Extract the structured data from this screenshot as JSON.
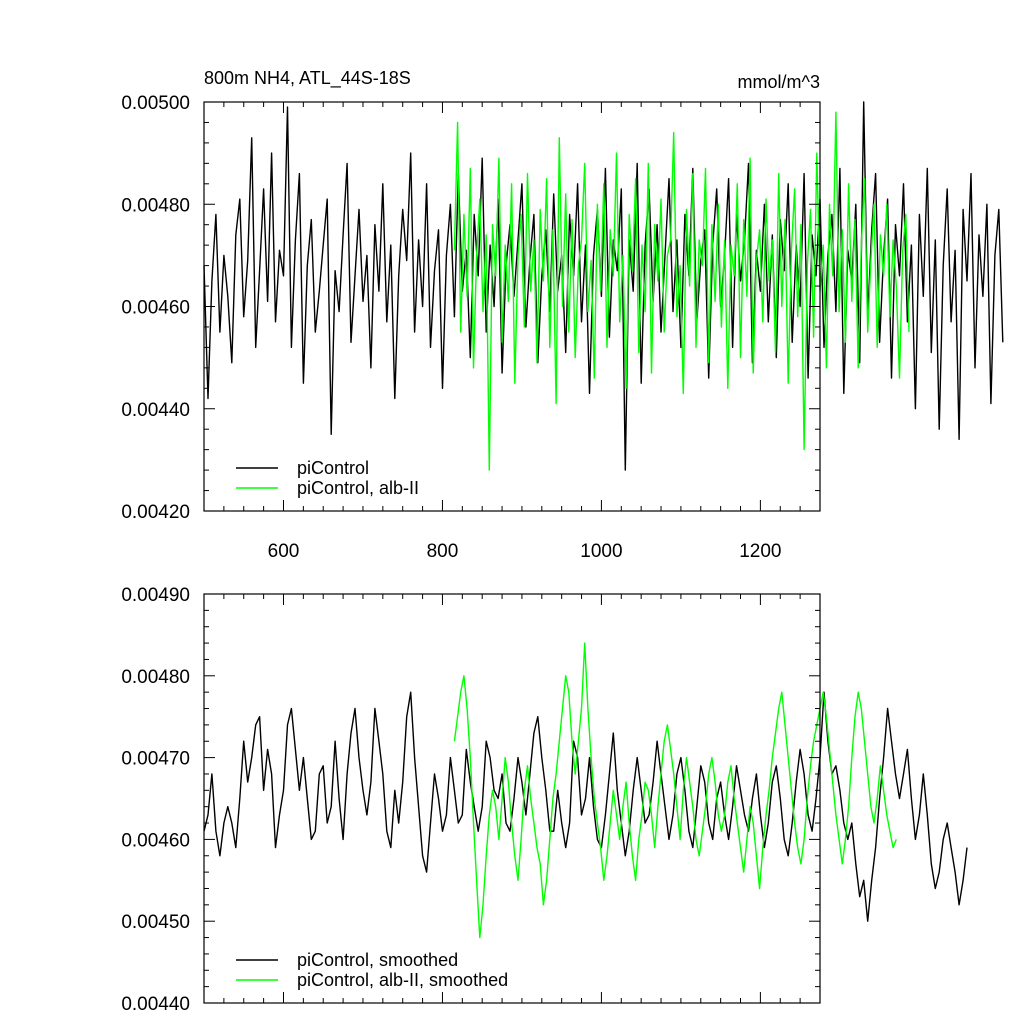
{
  "chart_data": [
    {
      "type": "line",
      "title": "800m NH4, ATL_44S-18S",
      "units": "mmol/m^3",
      "xlim": [
        500,
        1275
      ],
      "ylim": [
        0.0042,
        0.005
      ],
      "x_ticks": [
        "600",
        "800",
        "1000",
        "1200"
      ],
      "y_ticks": [
        "0.00420",
        "0.00440",
        "0.00460",
        "0.00480",
        "0.00500"
      ],
      "legend_position": "bottom-left",
      "series": [
        {
          "name": "piControl",
          "color": "#000000",
          "x_start": 500,
          "x_step": 5,
          "values": [
            0.00468,
            0.00442,
            0.00465,
            0.00478,
            0.00455,
            0.0047,
            0.00462,
            0.00449,
            0.00474,
            0.00481,
            0.00458,
            0.00469,
            0.00493,
            0.00452,
            0.00467,
            0.00483,
            0.00461,
            0.0049,
            0.00457,
            0.00471,
            0.00466,
            0.00499,
            0.00452,
            0.00473,
            0.00486,
            0.00445,
            0.00468,
            0.00477,
            0.00455,
            0.00463,
            0.00472,
            0.00481,
            0.00435,
            0.00467,
            0.00459,
            0.00474,
            0.00488,
            0.00453,
            0.00466,
            0.00479,
            0.00461,
            0.0047,
            0.00448,
            0.00476,
            0.00463,
            0.00484,
            0.00457,
            0.00472,
            0.00442,
            0.00466,
            0.00479,
            0.00469,
            0.0049,
            0.00455,
            0.00473,
            0.0046,
            0.00484,
            0.00452,
            0.00467,
            0.00475,
            0.00444,
            0.0047,
            0.0048,
            0.00458,
            0.00486,
            0.00463,
            0.00471,
            0.0045,
            0.00478,
            0.00466,
            0.00489,
            0.00455,
            0.00472,
            0.0046,
            0.00481,
            0.00447,
            0.00468,
            0.00476,
            0.00462,
            0.00473,
            0.00484,
            0.00456,
            0.00469,
            0.00478,
            0.00449,
            0.00466,
            0.00475,
            0.00459,
            0.00482,
            0.00463,
            0.0047,
            0.00451,
            0.00478,
            0.00466,
            0.00484,
            0.00457,
            0.00472,
            0.00443,
            0.0047,
            0.00479,
            0.00462,
            0.00487,
            0.00454,
            0.00473,
            0.00467,
            0.00483,
            0.00428,
            0.00473,
            0.00463,
            0.00488,
            0.00445,
            0.00472,
            0.00483,
            0.00461,
            0.00476,
            0.00455,
            0.0047,
            0.00485,
            0.00459,
            0.00473,
            0.00452,
            0.00478,
            0.00466,
            0.00487,
            0.00457,
            0.00469,
            0.00475,
            0.00446,
            0.00472,
            0.00483,
            0.0046,
            0.0047,
            0.00485,
            0.00452,
            0.00478,
            0.00465,
            0.00473,
            0.00488,
            0.00449,
            0.00471,
            0.00463,
            0.0048,
            0.00457,
            0.00474,
            0.0045,
            0.00477,
            0.00467,
            0.00484,
            0.00453,
            0.00472,
            0.0046,
            0.00486,
            0.00446,
            0.00474,
            0.00466,
            0.00481,
            0.00452,
            0.0047,
            0.00478,
            0.00459,
            0.00487,
            0.00443,
            0.00471,
            0.00465,
            0.0048,
            0.00449,
            0.005,
            0.00458,
            0.00475,
            0.00486,
            0.00453,
            0.0047,
            0.00481,
            0.00446,
            0.00476,
            0.00466,
            0.00484,
            0.00457,
            0.00472,
            0.0044,
            0.00478,
            0.00462,
            0.00487,
            0.00451,
            0.00473,
            0.00436,
            0.00468,
            0.00483,
            0.00457,
            0.00471,
            0.00434,
            0.00479,
            0.00465,
            0.00486,
            0.00448,
            0.00474,
            0.00462,
            0.0048,
            0.00441,
            0.0047,
            0.00479,
            0.00453
          ]
        },
        {
          "name": "piControl, alb-II",
          "color": "#00ff00",
          "x_start": 815,
          "x_step": 4,
          "values": [
            0.00471,
            0.00496,
            0.00455,
            0.00478,
            0.00462,
            0.00487,
            0.00448,
            0.0047,
            0.00481,
            0.00459,
            0.00474,
            0.00428,
            0.00476,
            0.00466,
            0.00489,
            0.00453,
            0.00472,
            0.00461,
            0.00484,
            0.00445,
            0.0047,
            0.00478,
            0.00456,
            0.00486,
            0.00463,
            0.00473,
            0.00449,
            0.00479,
            0.00465,
            0.00485,
            0.00452,
            0.00475,
            0.00441,
            0.00493,
            0.0046,
            0.00482,
            0.00455,
            0.00477,
            0.0045,
            0.00468,
            0.00473,
            0.00488,
            0.00459,
            0.00469,
            0.00446,
            0.0048,
            0.00463,
            0.00484,
            0.00452,
            0.00475,
            0.00466,
            0.0049,
            0.00457,
            0.0047,
            0.00444,
            0.00478,
            0.00467,
            0.00485,
            0.00451,
            0.00472,
            0.00459,
            0.00488,
            0.00447,
            0.00476,
            0.00465,
            0.00481,
            0.00455,
            0.0047,
            0.00473,
            0.00494,
            0.00458,
            0.00468,
            0.00443,
            0.00479,
            0.00464,
            0.00486,
            0.00452,
            0.00473,
            0.00468,
            0.00487,
            0.00449,
            0.00476,
            0.00461,
            0.0048,
            0.00456,
            0.00473,
            0.00444,
            0.00472,
            0.00466,
            0.00484,
            0.0045,
            0.00477,
            0.00462,
            0.00489,
            0.00447,
            0.00469,
            0.00475,
            0.00457,
            0.00481,
            0.00465,
            0.00473,
            0.00451,
            0.00486,
            0.0046,
            0.00477,
            0.00445,
            0.00471,
            0.00483,
            0.00458,
            0.00476,
            0.00432,
            0.00468,
            0.00479,
            0.00454,
            0.0049,
            0.00463,
            0.00472,
            0.00448,
            0.0048,
            0.00466,
            0.00498,
            0.00459,
            0.00475,
            0.00453,
            0.00484,
            0.00461,
            0.00477,
            0.00448,
            0.00472,
            0.00485,
            0.00455,
            0.00469,
            0.0048,
            0.00452,
            0.00474,
            0.00466,
            0.0048,
            0.00458,
            0.00473,
            0.00464,
            0.00446,
            0.00471,
            0.00478,
            0.00455
          ]
        }
      ]
    },
    {
      "type": "line",
      "xlim": [
        500,
        1275
      ],
      "ylim": [
        0.0044,
        0.0049
      ],
      "y_ticks": [
        "0.00440",
        "0.00450",
        "0.00460",
        "0.00470",
        "0.00480",
        "0.00490"
      ],
      "legend_position": "bottom-left",
      "series": [
        {
          "name": "piControl, smoothed",
          "color": "#000000",
          "x_start": 500,
          "x_step": 5,
          "values": [
            0.00461,
            0.00463,
            0.00468,
            0.00461,
            0.00458,
            0.00462,
            0.00464,
            0.00462,
            0.00459,
            0.00465,
            0.00472,
            0.00467,
            0.0047,
            0.00474,
            0.00475,
            0.00466,
            0.00471,
            0.00468,
            0.00459,
            0.00463,
            0.00466,
            0.00474,
            0.00476,
            0.00471,
            0.00466,
            0.0047,
            0.00465,
            0.0046,
            0.00461,
            0.00468,
            0.00469,
            0.00462,
            0.00464,
            0.00472,
            0.00465,
            0.0046,
            0.00468,
            0.00473,
            0.00476,
            0.0047,
            0.00466,
            0.00463,
            0.00467,
            0.00476,
            0.00472,
            0.00468,
            0.00461,
            0.00459,
            0.00466,
            0.00462,
            0.00467,
            0.00475,
            0.00478,
            0.0047,
            0.00464,
            0.00458,
            0.00456,
            0.00462,
            0.00468,
            0.00465,
            0.00461,
            0.00463,
            0.0047,
            0.00466,
            0.00462,
            0.00463,
            0.00471,
            0.00467,
            0.00464,
            0.00461,
            0.00464,
            0.00472,
            0.0047,
            0.00466,
            0.00465,
            0.00468,
            0.00462,
            0.00461,
            0.00465,
            0.0047,
            0.00467,
            0.00463,
            0.00468,
            0.00473,
            0.00475,
            0.0047,
            0.00466,
            0.00461,
            0.00461,
            0.00466,
            0.00462,
            0.00459,
            0.00462,
            0.00472,
            0.0047,
            0.00463,
            0.00465,
            0.0047,
            0.00464,
            0.0046,
            0.00459,
            0.00463,
            0.00468,
            0.00473,
            0.00466,
            0.00462,
            0.00458,
            0.00461,
            0.00466,
            0.0047,
            0.00466,
            0.00462,
            0.00463,
            0.00467,
            0.00472,
            0.00468,
            0.00464,
            0.0046,
            0.00463,
            0.00468,
            0.0047,
            0.00466,
            0.00461,
            0.00459,
            0.00464,
            0.00469,
            0.00467,
            0.00462,
            0.0046,
            0.00465,
            0.00467,
            0.00463,
            0.0046,
            0.00464,
            0.00469,
            0.00466,
            0.00463,
            0.00461,
            0.00465,
            0.00468,
            0.00463,
            0.00459,
            0.00462,
            0.00467,
            0.00469,
            0.00465,
            0.0046,
            0.00458,
            0.00462,
            0.00467,
            0.00471,
            0.00468,
            0.00463,
            0.00461,
            0.00465,
            0.0047,
            0.00478,
            0.00472,
            0.00468,
            0.00469,
            0.00466,
            0.00462,
            0.0046,
            0.00462,
            0.00457,
            0.00453,
            0.00455,
            0.0045,
            0.00455,
            0.00459,
            0.00465,
            0.0047,
            0.00476,
            0.00472,
            0.00468,
            0.00465,
            0.00468,
            0.00471,
            0.00465,
            0.0046,
            0.00463,
            0.00468,
            0.00463,
            0.00457,
            0.00454,
            0.00456,
            0.0046,
            0.00462,
            0.00459,
            0.00456,
            0.00452,
            0.00455,
            0.00459
          ]
        },
        {
          "name": "piControl, alb-II, smoothed",
          "color": "#00ff00",
          "x_start": 815,
          "x_step": 4,
          "values": [
            0.00472,
            0.00475,
            0.00478,
            0.0048,
            0.00476,
            0.0047,
            0.00462,
            0.00455,
            0.00448,
            0.00452,
            0.00458,
            0.00463,
            0.00466,
            0.00464,
            0.0046,
            0.00465,
            0.0047,
            0.00467,
            0.00462,
            0.00458,
            0.00455,
            0.0046,
            0.00466,
            0.00469,
            0.00465,
            0.00462,
            0.00459,
            0.00457,
            0.00452,
            0.00455,
            0.0046,
            0.00465,
            0.00468,
            0.00472,
            0.00476,
            0.0048,
            0.00478,
            0.00472,
            0.00468,
            0.00472,
            0.00476,
            0.00484,
            0.00476,
            0.0047,
            0.00465,
            0.00462,
            0.00459,
            0.00455,
            0.00458,
            0.00462,
            0.00466,
            0.00463,
            0.0046,
            0.00464,
            0.00467,
            0.00462,
            0.00458,
            0.00455,
            0.0046,
            0.00463,
            0.00467,
            0.00466,
            0.00463,
            0.00459,
            0.00464,
            0.00468,
            0.00472,
            0.00474,
            0.00471,
            0.00468,
            0.00464,
            0.0046,
            0.00466,
            0.0047,
            0.00467,
            0.00464,
            0.0046,
            0.00458,
            0.00461,
            0.00464,
            0.00468,
            0.0047,
            0.00467,
            0.00463,
            0.00461,
            0.00463,
            0.00467,
            0.00469,
            0.00465,
            0.00462,
            0.00459,
            0.00456,
            0.0046,
            0.00464,
            0.00462,
            0.00458,
            0.00454,
            0.00459,
            0.00463,
            0.00466,
            0.0047,
            0.00473,
            0.00476,
            0.00478,
            0.00474,
            0.0047,
            0.00466,
            0.00462,
            0.00459,
            0.00457,
            0.0046,
            0.00465,
            0.00469,
            0.00472,
            0.00474,
            0.00476,
            0.00478,
            0.00475,
            0.00471,
            0.00467,
            0.00463,
            0.0046,
            0.00457,
            0.0046,
            0.00464,
            0.0047,
            0.00475,
            0.00478,
            0.00476,
            0.00472,
            0.00468,
            0.00464,
            0.00462,
            0.00465,
            0.00469,
            0.00466,
            0.00463,
            0.00461,
            0.00459,
            0.0046
          ]
        }
      ]
    }
  ]
}
